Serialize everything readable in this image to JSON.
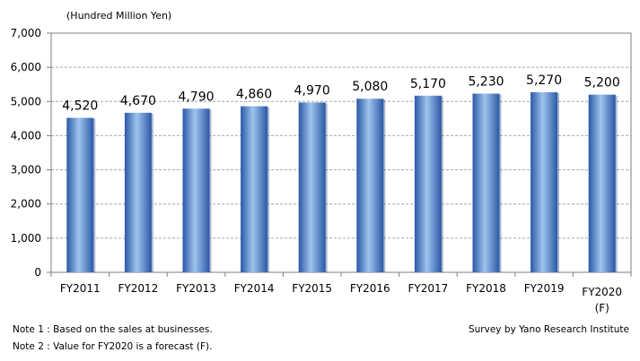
{
  "chart_data": {
    "type": "bar",
    "unit_label": "(Hundred Million Yen)",
    "categories": [
      "FY2011",
      "FY2012",
      "FY2013",
      "FY2014",
      "FY2015",
      "FY2016",
      "FY2017",
      "FY2018",
      "FY2019",
      "FY2020"
    ],
    "category_sublabels": [
      "",
      "",
      "",
      "",
      "",
      "",
      "",
      "",
      "",
      "(F)"
    ],
    "values": [
      4520,
      4670,
      4790,
      4860,
      4970,
      5080,
      5170,
      5230,
      5270,
      5200
    ],
    "value_labels": [
      "4,520",
      "4,670",
      "4,790",
      "4,860",
      "4,970",
      "5,080",
      "5,170",
      "5,230",
      "5,270",
      "5,200"
    ],
    "ylim": [
      0,
      7000
    ],
    "yticks": [
      0,
      1000,
      2000,
      3000,
      4000,
      5000,
      6000,
      7000
    ],
    "ytick_labels": [
      "0",
      "1,000",
      "2,000",
      "3,000",
      "4,000",
      "5,000",
      "6,000",
      "7,000"
    ],
    "grid": true,
    "bar_color_light": "#9ec4ee",
    "bar_color_dark": "#2b58a6"
  },
  "notes": {
    "note1": "Note 1 : Based on the sales at businesses.",
    "note2": "Note 2 : Value for FY2020 is a forecast (F)."
  },
  "source": "Survey by Yano Research Institute"
}
